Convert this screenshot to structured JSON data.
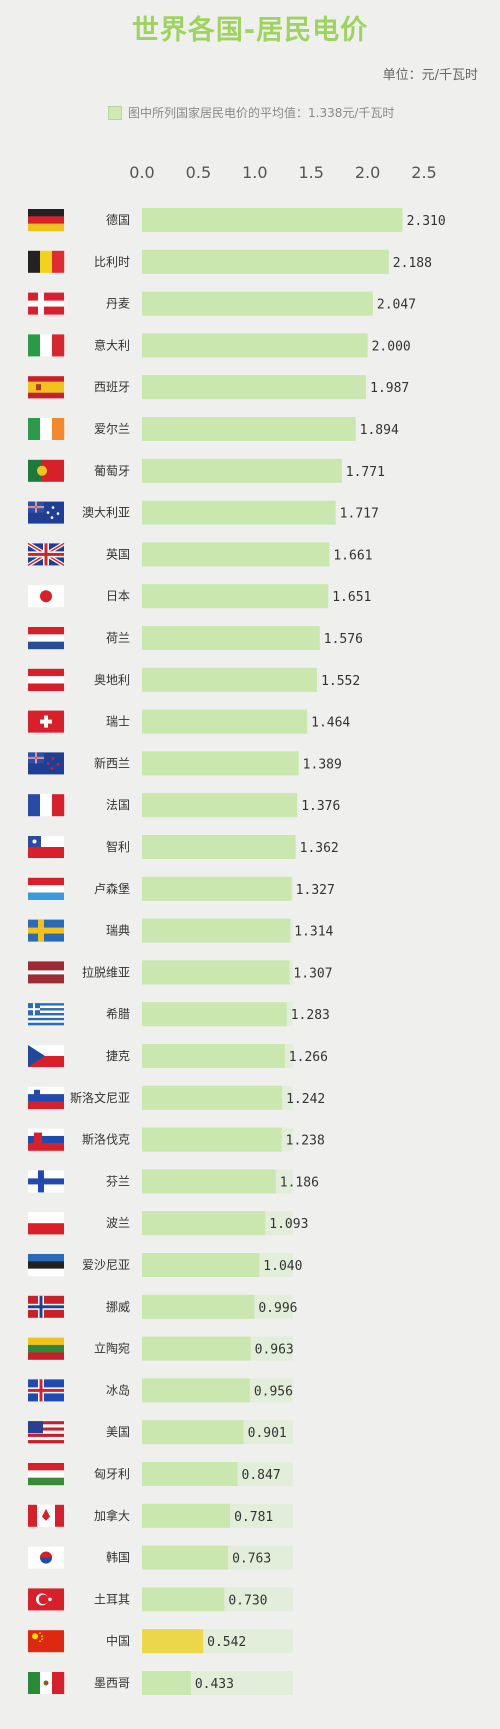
{
  "title": "世界各国-居民电价",
  "unit": "单位：元/千瓦时",
  "legend": "图中所列国家居民电价的平均值：1.338元/千瓦时",
  "colors": {
    "bar": "#c9e7ae",
    "bar_light": "#e2eeda",
    "highlight": "#ecd64a",
    "title": "#9fd35f"
  },
  "chart_data": {
    "type": "bar",
    "orientation": "horizontal",
    "title": "世界各国-居民电价",
    "unit": "单位：元/千瓦时",
    "xlim": [
      0,
      2.5
    ],
    "xticks": [
      "0.0",
      "0.5",
      "1.0",
      "1.5",
      "2.0",
      "2.5"
    ],
    "average": 1.338,
    "average_label": "图中所列国家居民电价的平均值：1.338元/千瓦时",
    "highlight": "中国",
    "categories": [
      "德国",
      "比利时",
      "丹麦",
      "意大利",
      "西班牙",
      "爱尔兰",
      "葡萄牙",
      "澳大利亚",
      "英国",
      "日本",
      "荷兰",
      "奥地利",
      "瑞士",
      "新西兰",
      "法国",
      "智利",
      "卢森堡",
      "瑞典",
      "拉脱维亚",
      "希腊",
      "捷克",
      "斯洛文尼亚",
      "斯洛伐克",
      "芬兰",
      "波兰",
      "爱沙尼亚",
      "挪威",
      "立陶宛",
      "冰岛",
      "美国",
      "匈牙利",
      "加拿大",
      "韩国",
      "土耳其",
      "中国",
      "墨西哥"
    ],
    "values": [
      2.31,
      2.188,
      2.047,
      2.0,
      1.987,
      1.894,
      1.771,
      1.717,
      1.661,
      1.651,
      1.576,
      1.552,
      1.464,
      1.389,
      1.376,
      1.362,
      1.327,
      1.314,
      1.307,
      1.283,
      1.266,
      1.242,
      1.238,
      1.186,
      1.093,
      1.04,
      0.996,
      0.963,
      0.956,
      0.901,
      0.847,
      0.781,
      0.763,
      0.73,
      0.542,
      0.433
    ],
    "value_labels": [
      "2.310",
      "2.188",
      "2.047",
      "2.000",
      "1.987",
      "1.894",
      "1.771",
      "1.717",
      "1.661",
      "1.651",
      "1.576",
      "1.552",
      "1.464",
      "1.389",
      "1.376",
      "1.362",
      "1.327",
      "1.314",
      "1.307",
      "1.283",
      "1.266",
      "1.242",
      "1.238",
      "1.186",
      "1.093",
      "1.040",
      "0.996",
      "0.963",
      "0.956",
      "0.901",
      "0.847",
      "0.781",
      "0.763",
      "0.730",
      "0.542",
      "0.433"
    ],
    "flags": [
      "flag-germany",
      "flag-belgium",
      "flag-denmark",
      "flag-italy",
      "flag-spain",
      "flag-ireland",
      "flag-portugal",
      "flag-australia",
      "flag-uk",
      "flag-japan",
      "flag-netherlands",
      "flag-austria",
      "flag-switzerland",
      "flag-new-zealand",
      "flag-france",
      "flag-chile",
      "flag-luxembourg",
      "flag-sweden",
      "flag-latvia",
      "flag-greece",
      "flag-czech",
      "flag-slovenia",
      "flag-slovakia",
      "flag-finland",
      "flag-poland",
      "flag-estonia",
      "flag-norway",
      "flag-lithuania",
      "flag-iceland",
      "flag-usa",
      "flag-hungary",
      "flag-canada",
      "flag-korea",
      "flag-turkey",
      "flag-china",
      "flag-mexico"
    ]
  }
}
